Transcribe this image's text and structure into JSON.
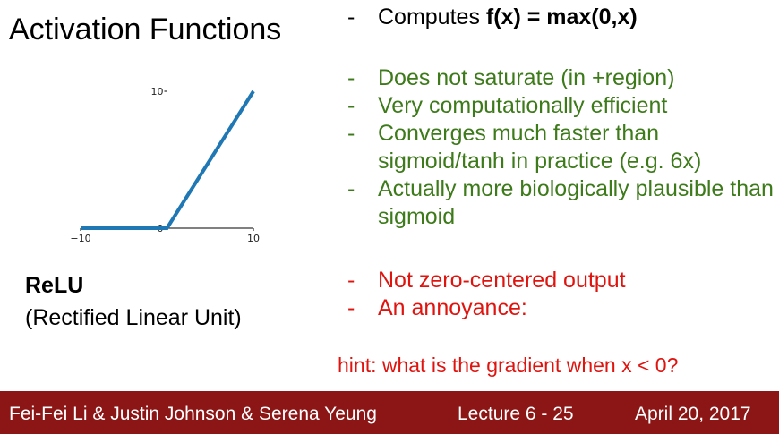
{
  "slide": {
    "title": "Activation Functions",
    "relu_name": "ReLU",
    "relu_full": "(Rectified Linear Unit)",
    "bullet_prefix": "Computes ",
    "formula": "f(x) = max(0,x)",
    "pros": [
      "Does not saturate (in +region)",
      "Very computationally efficient",
      "Converges much faster than sigmoid/tanh in practice (e.g. 6x)",
      "Actually more biologically plausible than sigmoid"
    ],
    "cons": [
      "Not zero-centered output",
      "An annoyance:"
    ],
    "hint": "hint: what is the gradient when x < 0?",
    "dash": "-"
  },
  "footer": {
    "authors": "Fei-Fei Li & Justin Johnson & Serena Yeung",
    "lecture": "Lecture 6 - 25",
    "date": "April 20, 2017"
  },
  "colors": {
    "line": "#1f77b4",
    "pros": "#3d7a1a",
    "cons": "#e0140f",
    "footer_bg": "#8c1515"
  },
  "chart_data": {
    "type": "line",
    "x": [
      -10,
      0,
      10
    ],
    "y": [
      0,
      0,
      10
    ],
    "xlim": [
      -10,
      10
    ],
    "ylim": [
      0,
      10
    ],
    "xticks": [
      "−10",
      "0",
      "10"
    ],
    "yticks": [
      "0",
      "10"
    ],
    "title": "",
    "xlabel": "",
    "ylabel": "",
    "grid": false
  }
}
